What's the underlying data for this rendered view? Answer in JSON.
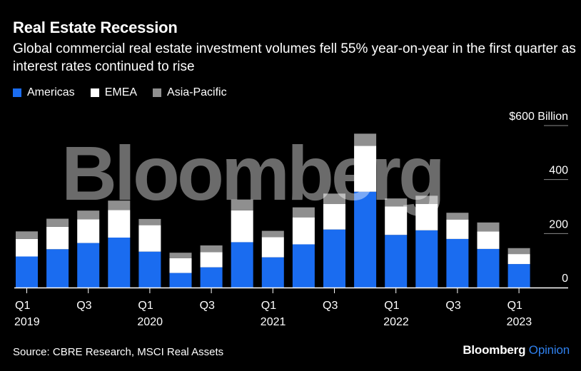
{
  "title": "Real Estate Recession",
  "subtitle": "Global commercial real estate investment volumes fell 55% year-on-year in the first quarter as interest rates continued to rise",
  "source": "Source: CBRE Research, MSCI Real Assets",
  "brand": {
    "name": "Bloomberg",
    "suffix": "Opinion"
  },
  "watermark": "Bloomberg",
  "colors": {
    "Americas": "#1a6cf0",
    "EMEA": "#ffffff",
    "Asia-Pacific": "#8f8f8f",
    "background": "#000000",
    "brand_accent": "#2f80ed"
  },
  "chart_data": {
    "type": "bar",
    "stacked": true,
    "categories": [
      "Q1 2019",
      "Q2 2019",
      "Q3 2019",
      "Q4 2019",
      "Q1 2020",
      "Q2 2020",
      "Q3 2020",
      "Q4 2020",
      "Q1 2021",
      "Q2 2021",
      "Q3 2021",
      "Q4 2021",
      "Q1 2022",
      "Q2 2022",
      "Q3 2022",
      "Q4 2022",
      "Q1 2023"
    ],
    "x_tick_labels": [
      {
        "index": 0,
        "quarter": "Q1",
        "year": "2019"
      },
      {
        "index": 2,
        "quarter": "Q3",
        "year": ""
      },
      {
        "index": 4,
        "quarter": "Q1",
        "year": "2020"
      },
      {
        "index": 6,
        "quarter": "Q3",
        "year": ""
      },
      {
        "index": 8,
        "quarter": "Q1",
        "year": "2021"
      },
      {
        "index": 10,
        "quarter": "Q3",
        "year": ""
      },
      {
        "index": 12,
        "quarter": "Q1",
        "year": "2022"
      },
      {
        "index": 14,
        "quarter": "Q3",
        "year": ""
      },
      {
        "index": 16,
        "quarter": "Q1",
        "year": "2023"
      }
    ],
    "series": [
      {
        "name": "Americas",
        "values": [
          115,
          142,
          165,
          185,
          133,
          54,
          75,
          168,
          112,
          160,
          215,
          355,
          195,
          212,
          180,
          143,
          87
        ]
      },
      {
        "name": "EMEA",
        "values": [
          65,
          83,
          88,
          102,
          98,
          55,
          56,
          118,
          75,
          100,
          95,
          170,
          105,
          98,
          72,
          65,
          37
        ]
      },
      {
        "name": "Asia-Pacific",
        "values": [
          28,
          30,
          32,
          35,
          23,
          20,
          25,
          40,
          23,
          37,
          38,
          45,
          30,
          30,
          25,
          33,
          22
        ]
      }
    ],
    "y_ticks": [
      {
        "value": 0,
        "label": "0"
      },
      {
        "value": 200,
        "label": "200"
      },
      {
        "value": 400,
        "label": "400"
      },
      {
        "value": 600,
        "label": "$600 Billion"
      }
    ],
    "ylim": [
      0,
      600
    ],
    "grid": true,
    "legend_position": "top-left"
  }
}
